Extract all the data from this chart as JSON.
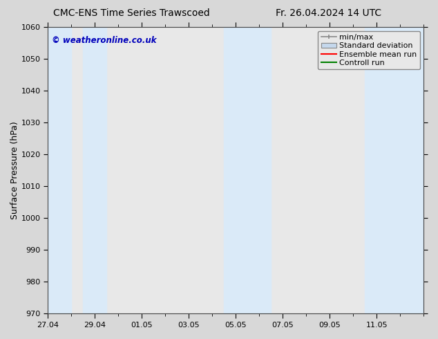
{
  "title_left": "CMC-ENS Time Series Trawscoed",
  "title_right": "Fr. 26.04.2024 14 UTC",
  "ylabel": "Surface Pressure (hPa)",
  "ylim": [
    970,
    1060
  ],
  "yticks": [
    970,
    980,
    990,
    1000,
    1010,
    1020,
    1030,
    1040,
    1050,
    1060
  ],
  "xlim_start": 0,
  "xlim_end": 16,
  "xtick_labels": [
    "27.04",
    "29.04",
    "01.05",
    "03.05",
    "05.05",
    "07.05",
    "09.05",
    "11.05"
  ],
  "xtick_positions": [
    0,
    2,
    4,
    6,
    8,
    10,
    12,
    14
  ],
  "watermark": "© weatheronline.co.uk",
  "watermark_color": "#0000bb",
  "fig_bg_color": "#d8d8d8",
  "plot_bg_color": "#e8e8e8",
  "shaded_bands": [
    {
      "x_start": 0.0,
      "x_end": 1.0,
      "color": "#daeaf8"
    },
    {
      "x_start": 1.5,
      "x_end": 2.5,
      "color": "#daeaf8"
    },
    {
      "x_start": 7.5,
      "x_end": 9.5,
      "color": "#daeaf8"
    },
    {
      "x_start": 13.5,
      "x_end": 16.0,
      "color": "#daeaf8"
    }
  ],
  "legend_items": [
    {
      "label": "min/max",
      "color": "#999999",
      "type": "errorbar"
    },
    {
      "label": "Standard deviation",
      "color": "#c5d8ed",
      "type": "fill"
    },
    {
      "label": "Ensemble mean run",
      "color": "#ff0000",
      "type": "line"
    },
    {
      "label": "Controll run",
      "color": "#008000",
      "type": "line"
    }
  ],
  "title_fontsize": 10,
  "tick_fontsize": 8,
  "ylabel_fontsize": 9,
  "legend_fontsize": 8
}
